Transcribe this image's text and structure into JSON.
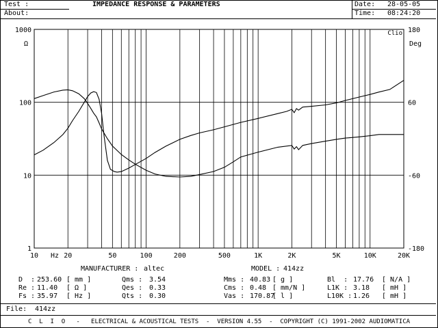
{
  "header": {
    "test_label": "Test :",
    "about_label": "About:",
    "title": "IMPEDANCE RESPONSE & PARAMETERS",
    "date_label": "Date:",
    "date_value": "28-05-05",
    "time_label": "Time:",
    "time_value": "08:24:20"
  },
  "chart_data": {
    "type": "line",
    "brand_label": "Clio",
    "x_scale": "log",
    "xlim": [
      10,
      20000
    ],
    "x_tick_labels": [
      "10",
      "Hz",
      "20",
      "50",
      "100",
      "200",
      "500",
      "1K",
      "2K",
      "5K",
      "10K",
      "20K"
    ],
    "x_tick_values": [
      10,
      null,
      20,
      50,
      100,
      200,
      500,
      1000,
      2000,
      5000,
      10000,
      20000
    ],
    "y_left": {
      "unit": "Ω",
      "scale": "log",
      "lim": [
        1,
        1000
      ],
      "tick_labels": [
        "1000",
        "100",
        "10",
        "1"
      ]
    },
    "y_right": {
      "unit": "Deg",
      "scale": "linear",
      "lim": [
        -180,
        180
      ],
      "tick_labels": [
        "180",
        "60",
        "-60",
        "-180"
      ]
    },
    "series": [
      {
        "axis": "left",
        "x": [
          10,
          12,
          15,
          18,
          20,
          22,
          25,
          28,
          30,
          32,
          34,
          35.97,
          38,
          40,
          42,
          45,
          48,
          52,
          55,
          60,
          70,
          80,
          100,
          120,
          150,
          200,
          250,
          300,
          400,
          500,
          700,
          1000,
          1500,
          1800,
          2000,
          2100,
          2200,
          2300,
          2500,
          3000,
          4000,
          5000,
          6000,
          8000,
          10000,
          12000,
          15000,
          20000
        ],
        "y": [
          19,
          22,
          28,
          36,
          44,
          56,
          75,
          100,
          120,
          134,
          140,
          136,
          110,
          70,
          35,
          16,
          12,
          11.2,
          11.0,
          11.2,
          12.5,
          14,
          17,
          20.5,
          25,
          31,
          35,
          38,
          42,
          46,
          53,
          60,
          70,
          75,
          80,
          72,
          82,
          78,
          86,
          88,
          92,
          98,
          106,
          118,
          128,
          138,
          150,
          200
        ]
      },
      {
        "axis": "right",
        "x": [
          10,
          12,
          15,
          18,
          20,
          22,
          25,
          28,
          30,
          32,
          34,
          35.97,
          38,
          40,
          45,
          50,
          60,
          70,
          80,
          100,
          120,
          150,
          200,
          250,
          300,
          400,
          500,
          600,
          700,
          1000,
          1500,
          2000,
          2100,
          2200,
          2300,
          2500,
          3000,
          4000,
          5000,
          6000,
          8000,
          10000,
          12000,
          15000,
          20000
        ],
        "y": [
          66,
          71,
          77,
          80,
          80.5,
          79,
          74,
          66,
          58,
          50,
          42,
          36,
          26,
          16,
          0,
          -12,
          -26,
          -35,
          -42,
          -52,
          -58,
          -62,
          -63,
          -62,
          -59,
          -54,
          -47,
          -38,
          -30,
          -22,
          -14,
          -11,
          -17,
          -13,
          -18,
          -11,
          -8,
          -4,
          -1,
          1,
          3,
          5,
          7,
          7,
          7
        ]
      }
    ]
  },
  "params": {
    "manufacturer_label": "MANUFACTURER :",
    "manufacturer_value": "altec",
    "model_label": "MODEL :",
    "model_value": "414zz",
    "rows": [
      [
        "D  :",
        "253.60",
        "[ mm ]",
        "Qms :",
        "3.54",
        "Mms :",
        "40.83",
        "[ g ]",
        "Bl  :",
        "17.76",
        "[ N/A ]"
      ],
      [
        "Re :",
        "11.40",
        "[ Ω ]",
        "Qes :",
        "0.33",
        "Cms :",
        "0.48",
        "[ mm/N ]",
        "L1K :",
        "3.18",
        "[ mH ]"
      ],
      [
        "Fs :",
        "35.97",
        "[ Hz ]",
        "Qts :",
        "0.30",
        "Vas :",
        "170.87",
        "[ l ]",
        "L10K :",
        "1.26",
        "[ mH ]"
      ]
    ]
  },
  "file": {
    "label": "File:",
    "value": "414zz"
  },
  "footer": "C  L  I  O   -   ELECTRICAL & ACOUSTICAL TESTS  -  VERSION 4.55  -  COPYRIGHT (C) 1991-2002 AUDIOMATICA"
}
